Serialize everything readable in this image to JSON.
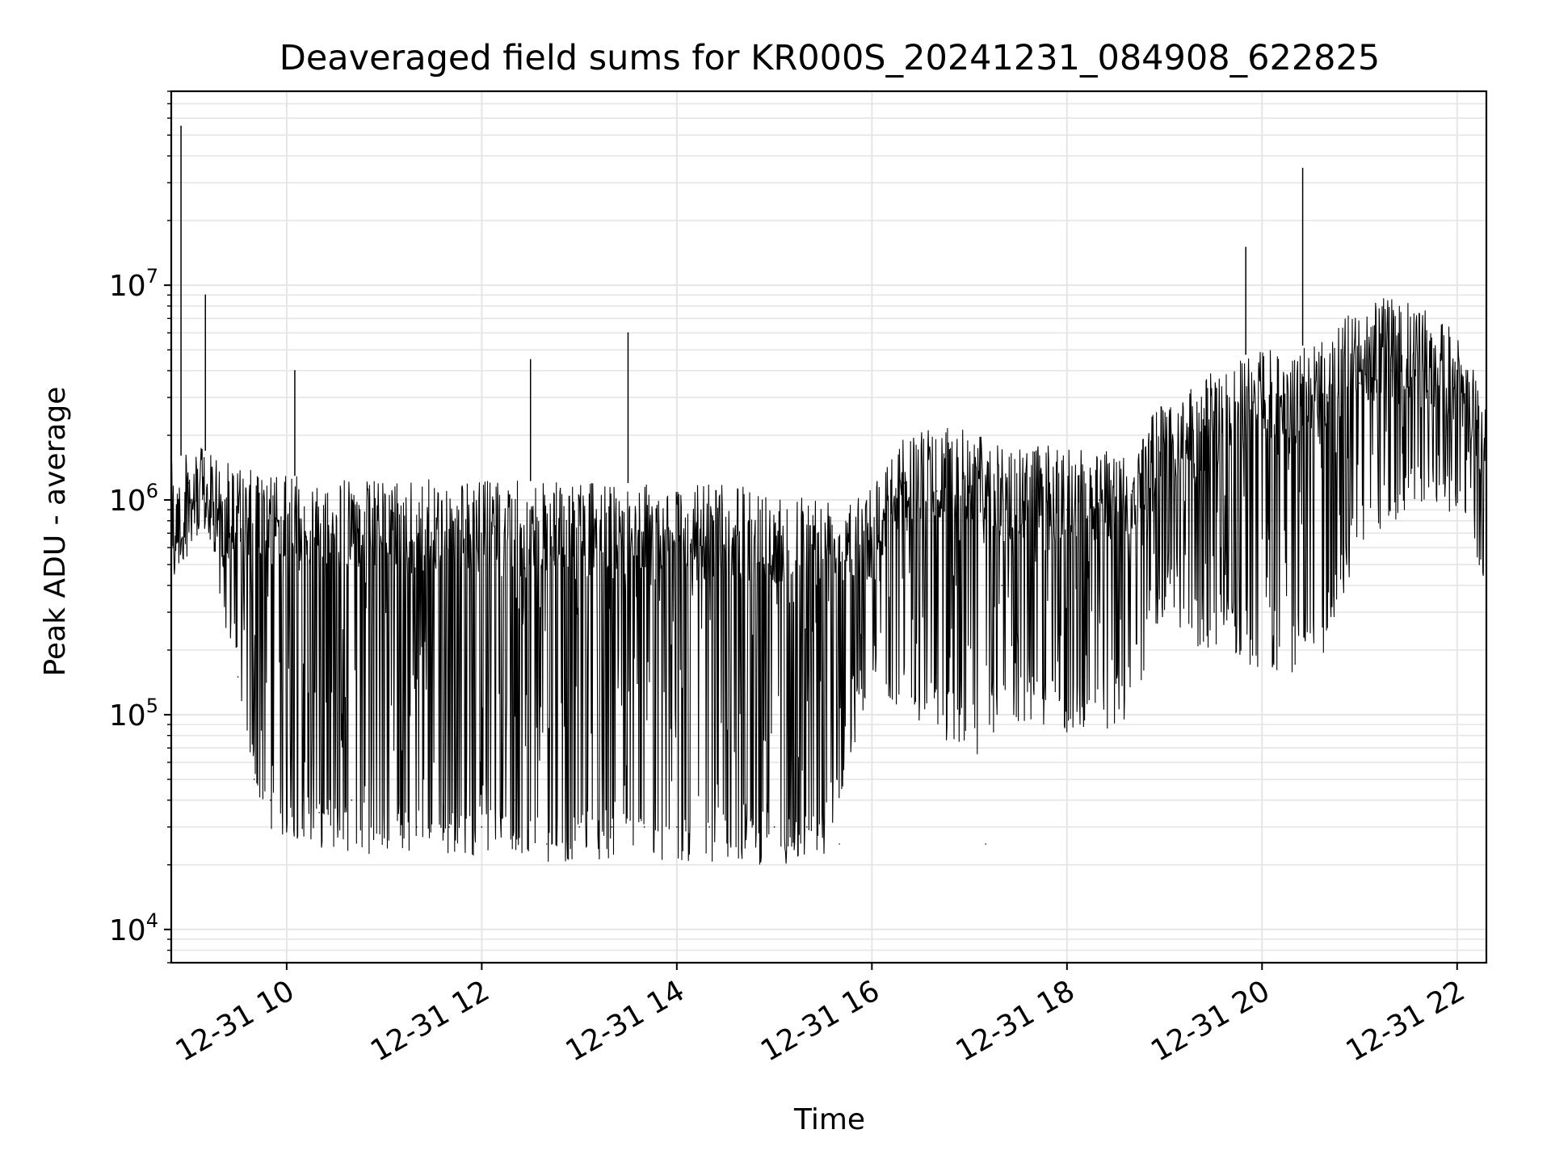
{
  "chart_data": {
    "type": "line",
    "title": "Deaveraged field sums for KR000S_20241231_084908_622825",
    "xlabel": "Time",
    "ylabel": "Peak ADU - average",
    "y_scale": "log",
    "xlim": [
      "12-31 08:49",
      "12-31 22:18"
    ],
    "ylim": [
      7000,
      80000000
    ],
    "x_ticks": [
      {
        "label": "12-31 10",
        "time": "12-31 10:00"
      },
      {
        "label": "12-31 12",
        "time": "12-31 12:00"
      },
      {
        "label": "12-31 14",
        "time": "12-31 14:00"
      },
      {
        "label": "12-31 16",
        "time": "12-31 16:00"
      },
      {
        "label": "12-31 18",
        "time": "12-31 18:00"
      },
      {
        "label": "12-31 20",
        "time": "12-31 20:00"
      },
      {
        "label": "12-31 22",
        "time": "12-31 22:00"
      }
    ],
    "y_ticks": [
      {
        "base": "10",
        "exp": "4",
        "value": 10000
      },
      {
        "base": "10",
        "exp": "5",
        "value": 100000
      },
      {
        "base": "10",
        "exp": "6",
        "value": 1000000
      },
      {
        "base": "10",
        "exp": "7",
        "value": 10000000
      }
    ],
    "grid": true,
    "line_color": "#000000",
    "grid_color": "#e5e5e5",
    "series": [
      {
        "x": [
          "12-31 08:49",
          "12-31 08:50",
          "12-31 08:55",
          "12-31 09:00",
          "12-31 09:05",
          "12-31 09:10",
          "12-31 09:20",
          "12-31 09:30",
          "12-31 09:40",
          "12-31 09:50",
          "12-31 10:00",
          "12-31 10:05",
          "12-31 10:10",
          "12-31 10:20",
          "12-31 10:40",
          "12-31 11:00",
          "12-31 11:20",
          "12-31 11:40",
          "12-31 12:00",
          "12-31 12:20",
          "12-31 12:30",
          "12-31 12:40",
          "12-31 13:00",
          "12-31 13:20",
          "12-31 13:30",
          "12-31 13:40",
          "12-31 14:00",
          "12-31 14:20",
          "12-31 14:40",
          "12-31 15:00",
          "12-31 15:20",
          "12-31 15:40",
          "12-31 16:00",
          "12-31 16:20",
          "12-31 16:40",
          "12-31 17:00",
          "12-31 17:10",
          "12-31 17:20",
          "12-31 17:40",
          "12-31 18:00",
          "12-31 18:20",
          "12-31 18:40",
          "12-31 19:00",
          "12-31 19:20",
          "12-31 19:40",
          "12-31 19:50",
          "12-31 20:00",
          "12-31 20:20",
          "12-31 20:25",
          "12-31 20:40",
          "12-31 21:00",
          "12-31 21:20",
          "12-31 21:40",
          "12-31 22:00",
          "12-31 22:18"
        ],
        "y": [
          800000,
          600000,
          55000000,
          1200000,
          1000000,
          9000000,
          600000,
          150000,
          50000,
          40000,
          50000,
          4000000,
          40000,
          35000,
          40000,
          35000,
          30000,
          30000,
          30000,
          40000,
          4500000,
          25000,
          30000,
          30000,
          6000000,
          30000,
          30000,
          30000,
          30000,
          30000,
          30000,
          25000,
          600000,
          1200000,
          1100000,
          1200000,
          25000,
          400000,
          1100000,
          900000,
          1000000,
          1100000,
          1500000,
          1800000,
          2000000,
          15000000,
          2500000,
          3000000,
          35000000,
          3000000,
          3500000,
          4000000,
          4000000,
          3500000,
          2500000
        ]
      }
    ],
    "envelope": {
      "note_units": "ADU",
      "time": [
        "12-31 08:49",
        "12-31 09:05",
        "12-31 09:15",
        "12-31 09:25",
        "12-31 09:35",
        "12-31 09:45",
        "12-31 10:00",
        "12-31 11:00",
        "12-31 12:00",
        "12-31 13:00",
        "12-31 14:00",
        "12-31 15:00",
        "12-31 15:30",
        "12-31 16:00",
        "12-31 16:20",
        "12-31 16:40",
        "12-31 17:00",
        "12-31 17:20",
        "12-31 17:40",
        "12-31 18:00",
        "12-31 18:20",
        "12-31 18:40",
        "12-31 19:00",
        "12-31 19:20",
        "12-31 19:40",
        "12-31 20:00",
        "12-31 20:20",
        "12-31 20:40",
        "12-31 21:00",
        "12-31 21:20",
        "12-31 21:40",
        "12-31 22:00",
        "12-31 22:18"
      ],
      "upper": [
        1500000,
        1800000,
        1600000,
        1500000,
        1400000,
        1350000,
        1300000,
        1250000,
        1250000,
        1200000,
        1200000,
        1150000,
        1100000,
        1200000,
        2000000,
        2200000,
        2200000,
        1800000,
        1800000,
        1800000,
        1800000,
        1800000,
        3000000,
        3500000,
        4500000,
        5000000,
        5000000,
        6000000,
        8000000,
        9000000,
        8000000,
        6000000,
        3000000
      ],
      "lower": [
        300000,
        800000,
        500000,
        200000,
        60000,
        30000,
        25000,
        22000,
        22000,
        20000,
        20000,
        20000,
        20000,
        150000,
        100000,
        80000,
        60000,
        80000,
        90000,
        80000,
        80000,
        100000,
        300000,
        200000,
        200000,
        150000,
        150000,
        200000,
        600000,
        700000,
        1000000,
        800000,
        400000
      ]
    }
  }
}
